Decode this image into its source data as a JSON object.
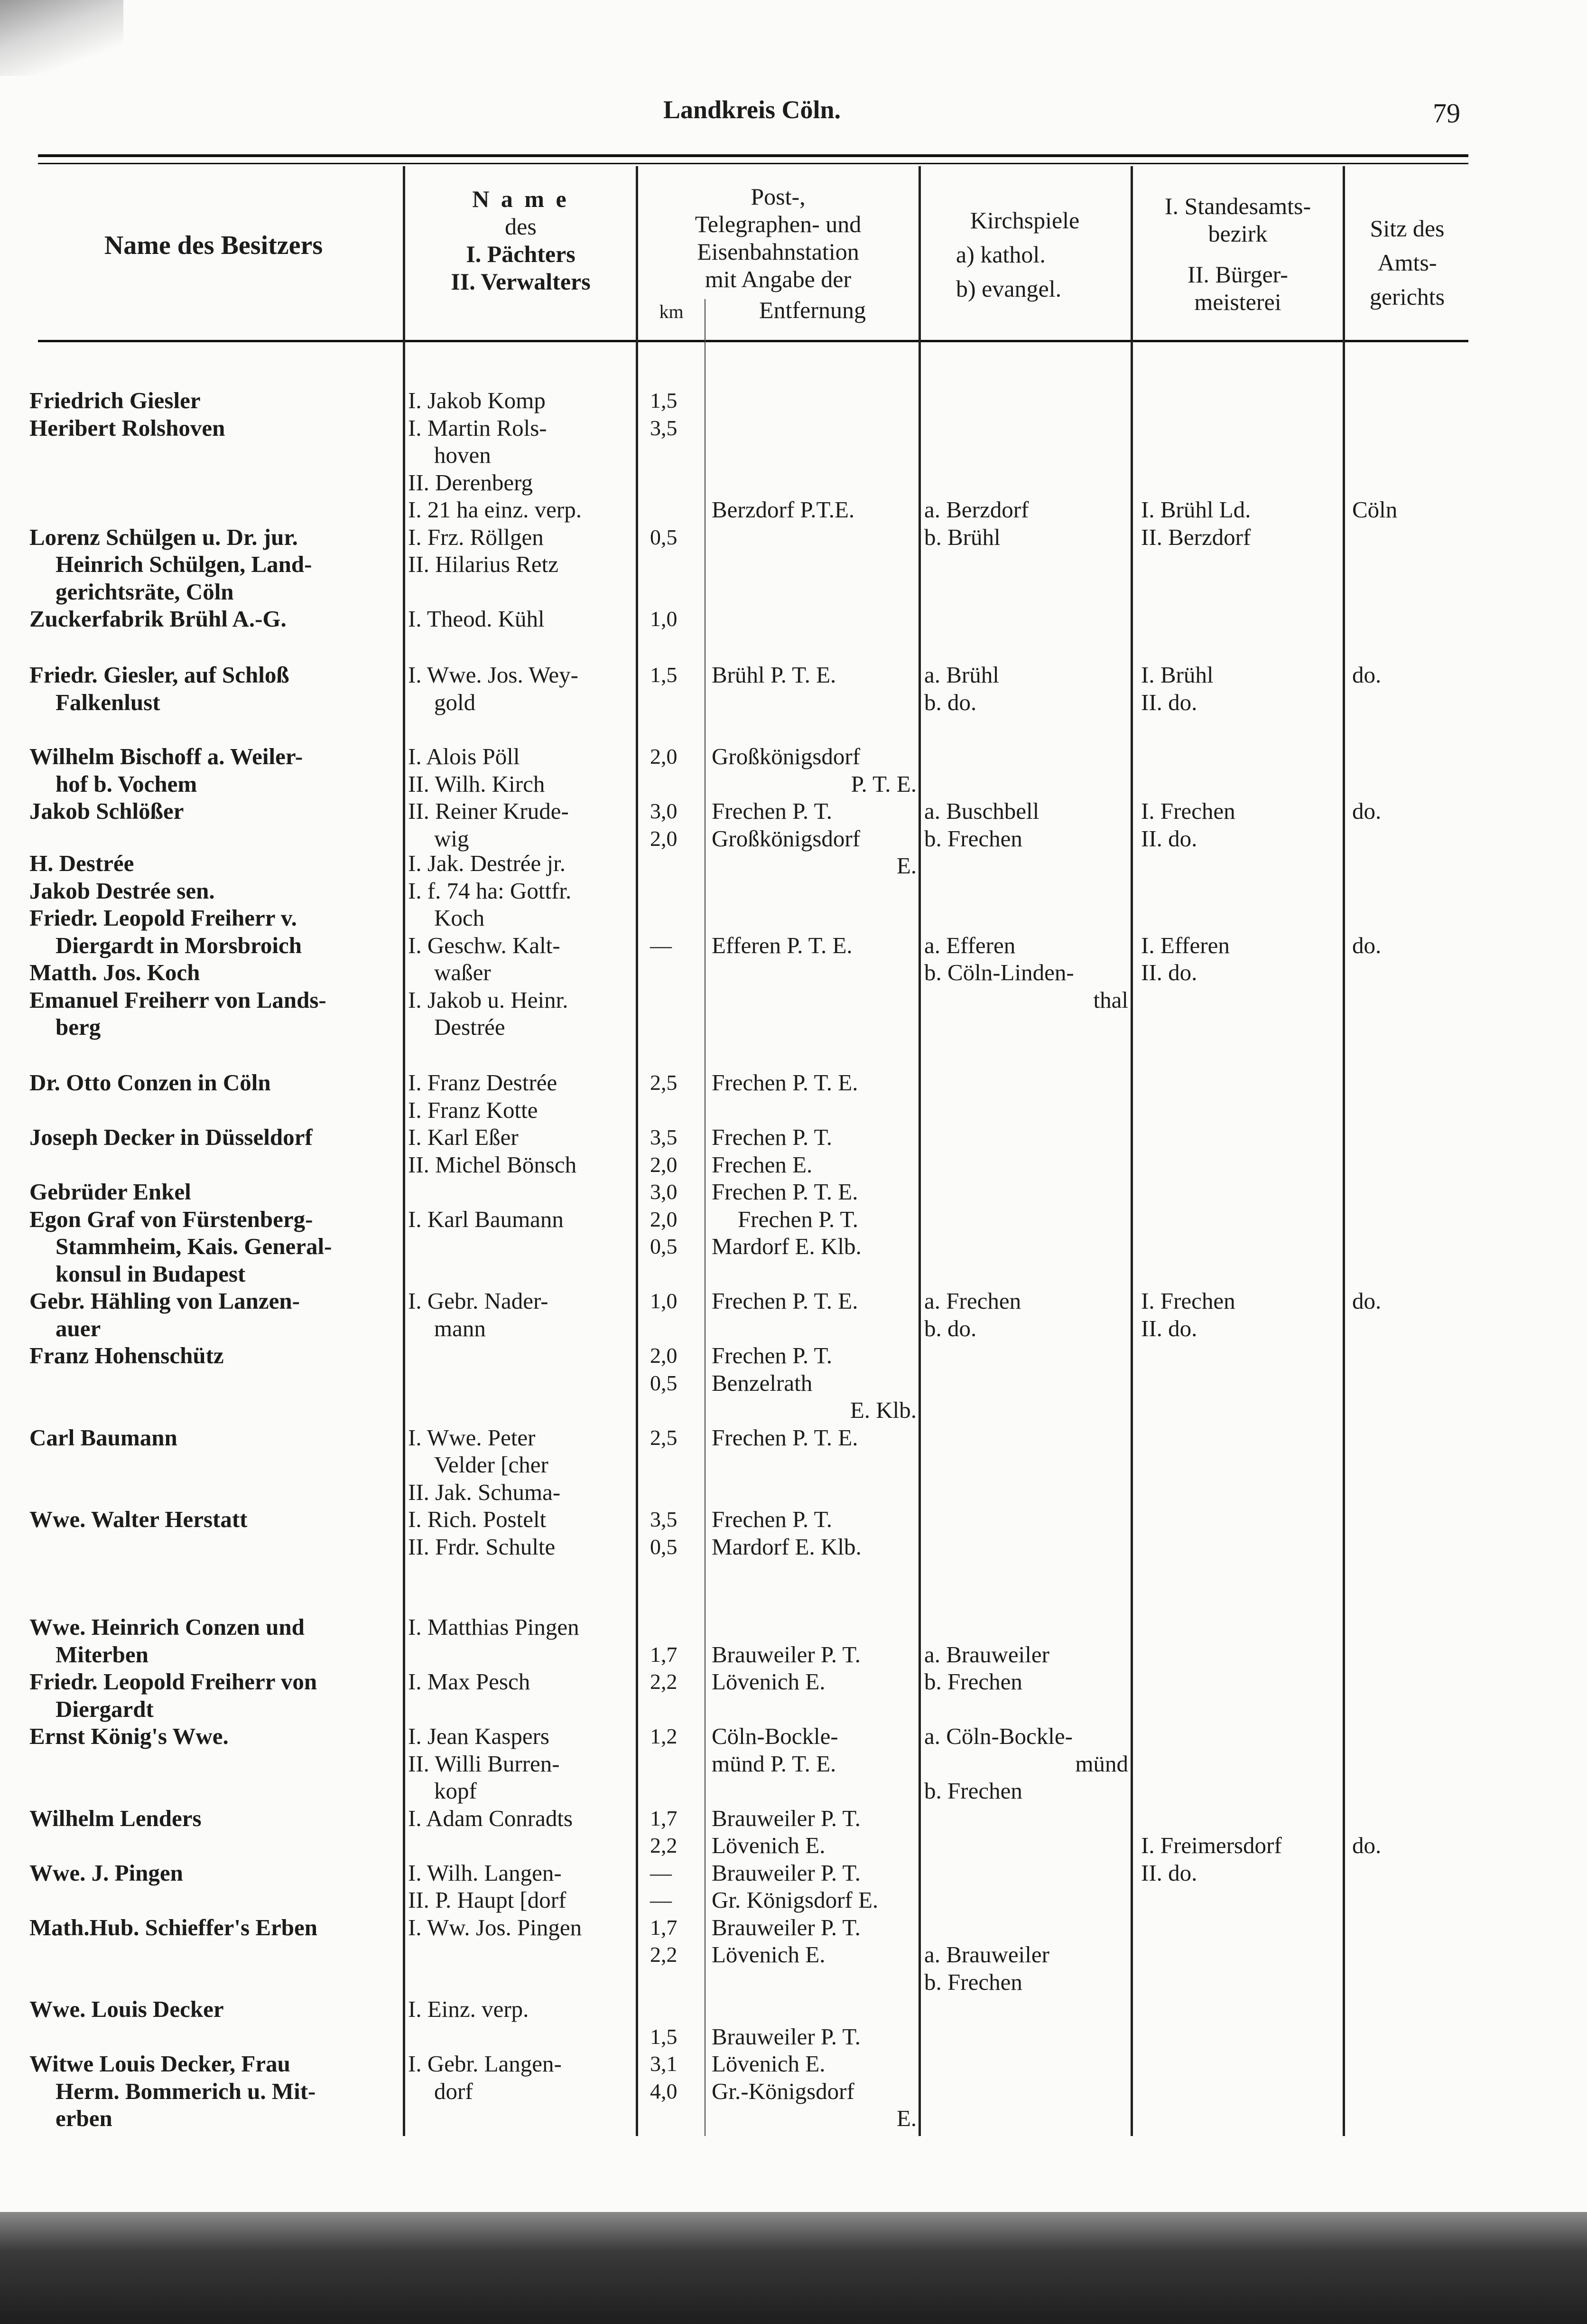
{
  "header": {
    "title": "Landkreis Cöln.",
    "page_number": "79"
  },
  "columns": {
    "owner": [
      "Name des Besitzers"
    ],
    "tenant": [
      "N a m e",
      "des",
      "I. Pächters",
      "II. Verwalters"
    ],
    "station": [
      "Post-,",
      "Telegraphen- und",
      "Eisenbahnstation",
      "mit Angabe der"
    ],
    "km": "km",
    "distance": "Entfernung",
    "parish": [
      "Kirchspiele",
      "a) kathol.",
      "b) evangel."
    ],
    "registry": [
      "I. Standesamts-",
      "bezirk",
      "II. Bürger-",
      "meisterei"
    ],
    "court": [
      "Sitz des",
      "Amts-",
      "gerichts"
    ]
  },
  "groups": [
    {
      "owner": [
        "Friedrich Giesler",
        "Heribert Rolshoven",
        "",
        "",
        "",
        "Lorenz Schülgen u. Dr. jur.",
        "Heinrich Schülgen, Land-",
        "gerichtsräte, Cöln",
        "Zuckerfabrik Brühl A.-G."
      ],
      "tenant": [
        "I. Jakob Komp",
        "I. Martin Rols-",
        "hoven",
        "II. Derenberg",
        "I. 21 ha einz. verp.",
        "I. Frz. Röllgen",
        "II. Hilarius Retz",
        "",
        "I. Theod. Kühl"
      ],
      "km": [
        "1,5",
        "3,5",
        "",
        "",
        "",
        "0,5",
        "",
        "",
        "1,0"
      ],
      "station": [
        "",
        "",
        "",
        "",
        "Berzdorf P.T.E."
      ],
      "parish": [
        "",
        "",
        "",
        "",
        "a. Berzdorf",
        "b. Brühl"
      ],
      "registry": [
        "",
        "",
        "",
        "",
        "I. Brühl Ld.",
        "II. Berzdorf"
      ],
      "court": [
        "",
        "",
        "",
        "",
        "Cöln"
      ]
    },
    {
      "owner": [
        "Friedr. Giesler, auf Schloß",
        "Falkenlust"
      ],
      "tenant": [
        "I. Wwe. Jos. Wey-",
        "gold"
      ],
      "km": [
        "1,5"
      ],
      "station": [
        "Brühl P. T. E."
      ],
      "parish": [
        "a. Brühl",
        "b. do."
      ],
      "registry": [
        "I. Brühl",
        "II. do."
      ],
      "court": [
        "do."
      ]
    },
    {
      "owner": [
        "Wilhelm Bischoff a. Weiler-",
        "hof b. Vochem",
        "Jakob Schlößer"
      ],
      "tenant": [
        "I. Alois Pöll",
        "II. Wilh. Kirch",
        "II. Reiner Krude-",
        "wig"
      ],
      "km": [
        "2,0",
        "",
        "3,0",
        "2,0"
      ],
      "station": [
        "Großkönigsdorf",
        "P. T. E.",
        "Frechen P. T.",
        "Großkönigsdorf",
        "E."
      ],
      "parish": [
        "",
        "",
        "a. Buschbell",
        "b. Frechen"
      ],
      "registry": [
        "",
        "",
        "I. Frechen",
        "II. do."
      ],
      "court": [
        "",
        "",
        "do."
      ]
    },
    {
      "owner": [
        "H. Destrée",
        "Jakob Destrée sen.",
        "Friedr. Leopold Freiherr v.",
        "Diergardt in Morsbroich",
        "Matth. Jos. Koch",
        "Emanuel Freiherr von Lands-",
        "berg"
      ],
      "tenant": [
        "I. Jak. Destrée jr.",
        "I. f. 74 ha: Gottfr.",
        "Koch",
        "I. Geschw. Kalt-",
        "waßer",
        "I. Jakob u. Heinr.",
        "Destrée"
      ],
      "km": [
        "",
        "",
        "",
        "—"
      ],
      "station": [
        "",
        "",
        "",
        "Efferen P. T. E."
      ],
      "parish": [
        "",
        "",
        "",
        "a. Efferen",
        "b. Cöln-Linden-",
        "thal"
      ],
      "registry": [
        "",
        "",
        "",
        "I. Efferen",
        "II. do."
      ],
      "court": [
        "",
        "",
        "",
        "do."
      ]
    },
    {
      "owner": [
        "Dr. Otto Conzen in Cöln",
        "",
        "Joseph Decker in Düsseldorf",
        "",
        "Gebrüder Enkel",
        "Egon Graf von Fürstenberg-",
        "Stammheim, Kais. General-",
        "konsul in Budapest",
        "Gebr. Hähling von Lanzen-",
        "auer",
        "Franz Hohenschütz",
        "",
        "",
        "Carl Baumann",
        "",
        "",
        "Wwe. Walter Herstatt"
      ],
      "tenant": [
        "I. Franz Destrée",
        "I. Franz Kotte",
        "I. Karl Eßer",
        "II. Michel Bönsch",
        "",
        "I. Karl Baumann",
        "",
        "",
        "I. Gebr. Nader-",
        "mann",
        "",
        "",
        "",
        "I. Wwe. Peter",
        "Velder [cher",
        "II. Jak. Schuma-",
        "I. Rich. Postelt",
        "II. Frdr. Schulte"
      ],
      "km": [
        "2,5",
        "",
        "3,5",
        "2,0",
        "3,0",
        "2,0",
        "0,5",
        "",
        "1,0",
        "",
        "2,0",
        "0,5",
        "",
        "2,5",
        "",
        "",
        "3,5",
        "0,5"
      ],
      "station": [
        "Frechen P. T. E.",
        "",
        "Frechen P. T.",
        "Frechen E.",
        "Frechen P. T. E.",
        "Frechen P. T.",
        "Mardorf E. Klb.",
        "",
        "Frechen P. T. E.",
        "",
        "Frechen P. T.",
        "Benzelrath",
        "E. Klb.",
        "Frechen P. T. E.",
        "",
        "",
        "Frechen P. T.",
        "Mardorf E. Klb."
      ],
      "parish": [
        "",
        "",
        "",
        "",
        "",
        "",
        "",
        "",
        "a. Frechen",
        "b. do."
      ],
      "registry": [
        "",
        "",
        "",
        "",
        "",
        "",
        "",
        "",
        "I. Frechen",
        "II. do."
      ],
      "court": [
        "",
        "",
        "",
        "",
        "",
        "",
        "",
        "",
        "do."
      ]
    },
    {
      "owner": [
        "Wwe. Heinrich Conzen und",
        "Miterben",
        "Friedr. Leopold Freiherr von",
        "Diergardt",
        "Ernst König's Wwe.",
        "",
        "",
        "Wilhelm Lenders",
        "",
        "Wwe. J. Pingen",
        "",
        "Math.Hub. Schieffer's Erben",
        "",
        "",
        "Wwe. Louis Decker",
        "",
        "Witwe Louis Decker, Frau",
        "Herm. Bommerich u. Mit-",
        "erben"
      ],
      "tenant": [
        "I. Matthias Pingen",
        "",
        "I. Max Pesch",
        "",
        "I. Jean Kaspers",
        "II. Willi Burren-",
        "kopf",
        "I. Adam Conradts",
        "",
        "I. Wilh. Langen-",
        "II. P. Haupt [dorf",
        "I. Ww. Jos. Pingen",
        "",
        "",
        "I. Einz. verp.",
        "",
        "I. Gebr. Langen-",
        "dorf"
      ],
      "km": [
        "",
        "1,7",
        "2,2",
        "",
        "1,2",
        "",
        "",
        "1,7",
        "2,2",
        "—",
        "—",
        "1,7",
        "2,2",
        "",
        "",
        "1,5",
        "3,1",
        "4,0"
      ],
      "station": [
        "",
        "Brauweiler P. T.",
        "Lövenich E.",
        "",
        "Cöln-Bockle-",
        "münd P. T. E.",
        "",
        "Brauweiler P. T.",
        "Lövenich E.",
        "Brauweiler P. T.",
        "Gr. Königsdorf E.",
        "Brauweiler P. T.",
        "Lövenich E.",
        "",
        "",
        "Brauweiler P. T.",
        "Lövenich E.",
        "Gr.-Königsdorf",
        "E."
      ],
      "parish": [
        "",
        "a. Brauweiler",
        "b. Frechen",
        "",
        "a. Cöln-Bockle-",
        "münd",
        "b. Frechen",
        "",
        "",
        "",
        "",
        "",
        "a. Brauweiler",
        "b. Frechen"
      ],
      "registry": [
        "",
        "",
        "",
        "",
        "",
        "",
        "",
        "",
        "I. Freimersdorf",
        "II. do."
      ],
      "court": [
        "",
        "",
        "",
        "",
        "",
        "",
        "",
        "",
        "do."
      ]
    }
  ]
}
